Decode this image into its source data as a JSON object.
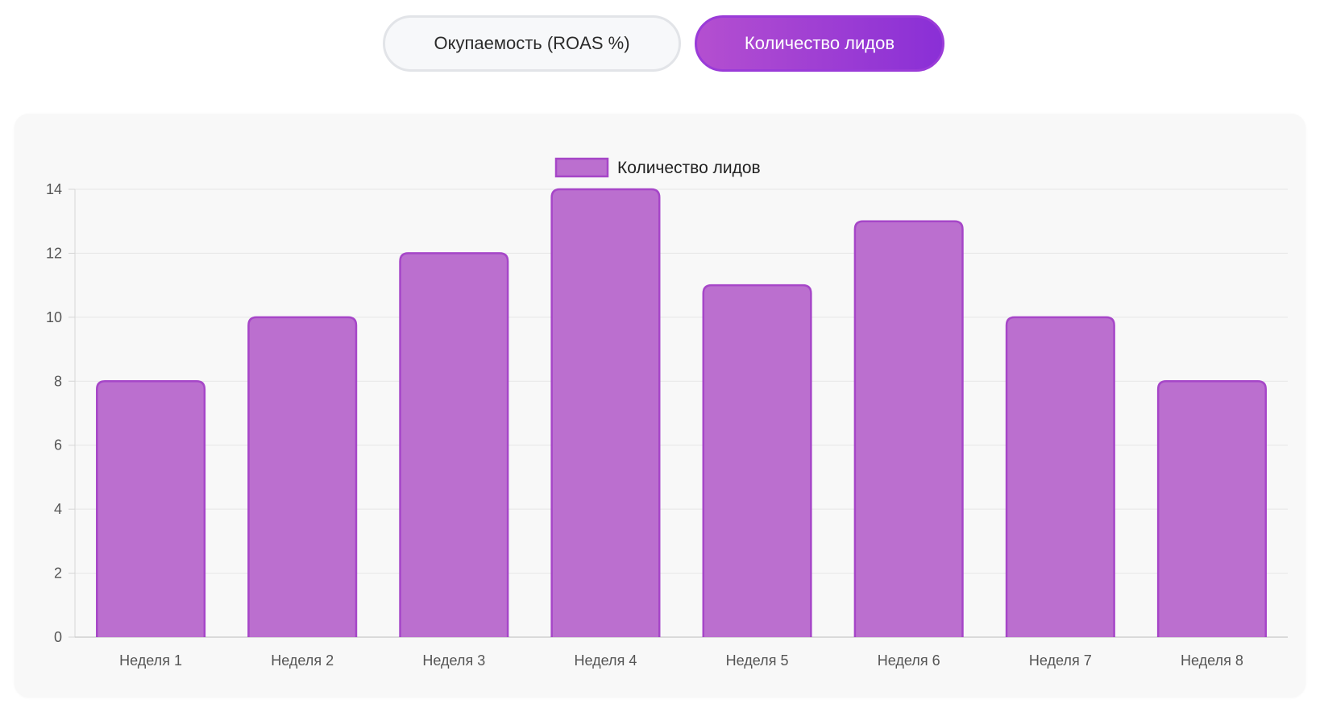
{
  "tabs": {
    "roas_label": "Окупаемость (ROAS %)",
    "leads_label": "Количество лидов",
    "active": "leads"
  },
  "colors": {
    "bar_fill": "#bb6fcf",
    "bar_stroke": "#a646c8",
    "accent_start": "#b44fd0",
    "accent_end": "#8a2fd6",
    "grid": "#e6e6e6"
  },
  "chart_data": {
    "type": "bar",
    "categories": [
      "Неделя 1",
      "Неделя 2",
      "Неделя 3",
      "Неделя 4",
      "Неделя 5",
      "Неделя 6",
      "Неделя 7",
      "Неделя 8"
    ],
    "series": [
      {
        "name": "Количество лидов",
        "values": [
          8,
          10,
          12,
          14,
          11,
          13,
          10,
          8
        ]
      }
    ],
    "ylim": [
      0,
      14
    ],
    "yticks": [
      0,
      2,
      4,
      6,
      8,
      10,
      12,
      14
    ],
    "grid": true,
    "legend_position": "top-center"
  }
}
